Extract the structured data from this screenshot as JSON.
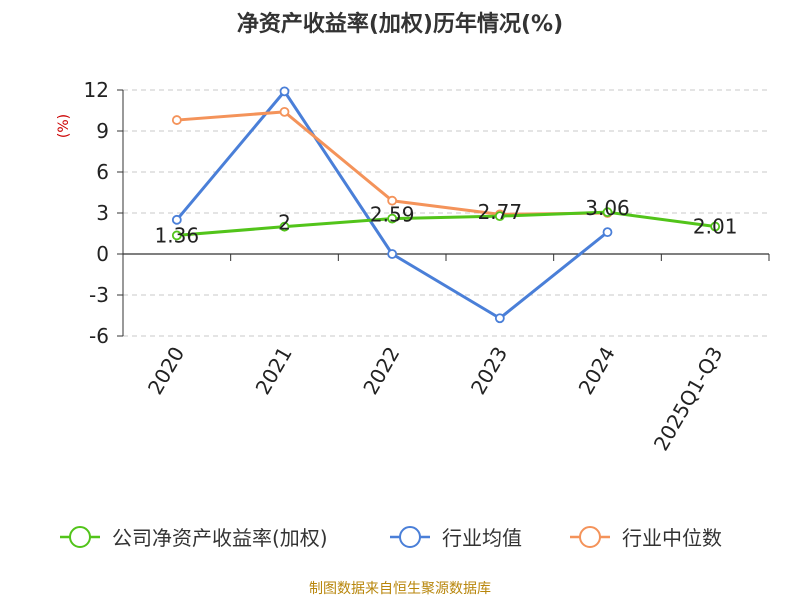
{
  "title": "净资产收益率(加权)历年情况(%)",
  "footer": "制图数据来自恒生聚源数据库",
  "chart_data": {
    "type": "line",
    "title": "净资产收益率(加权)历年情况(%)",
    "ylabel": "(%)",
    "xlabel": "",
    "categories": [
      "2020",
      "2021",
      "2022",
      "2023",
      "2024",
      "2025Q1-Q3"
    ],
    "yticks": [
      12,
      9,
      6,
      3,
      0,
      -3,
      -6
    ],
    "ylim": [
      -6,
      12
    ],
    "grid": true,
    "legend_position": "bottom",
    "series": [
      {
        "name": "公司净资产收益率(加权)",
        "color": "#52c41a",
        "values": [
          1.36,
          2,
          2.59,
          2.77,
          3.06,
          2.01
        ],
        "labels": [
          "1.36",
          "2",
          "2.59",
          "2.77",
          "3.06",
          "2.01"
        ]
      },
      {
        "name": "行业均值",
        "color": "#4a7fd8",
        "values": [
          2.5,
          11.9,
          0.0,
          -4.7,
          1.6,
          null
        ]
      },
      {
        "name": "行业中位数",
        "color": "#f4935a",
        "values": [
          9.8,
          10.4,
          3.9,
          2.9,
          3.0,
          null
        ]
      }
    ]
  }
}
